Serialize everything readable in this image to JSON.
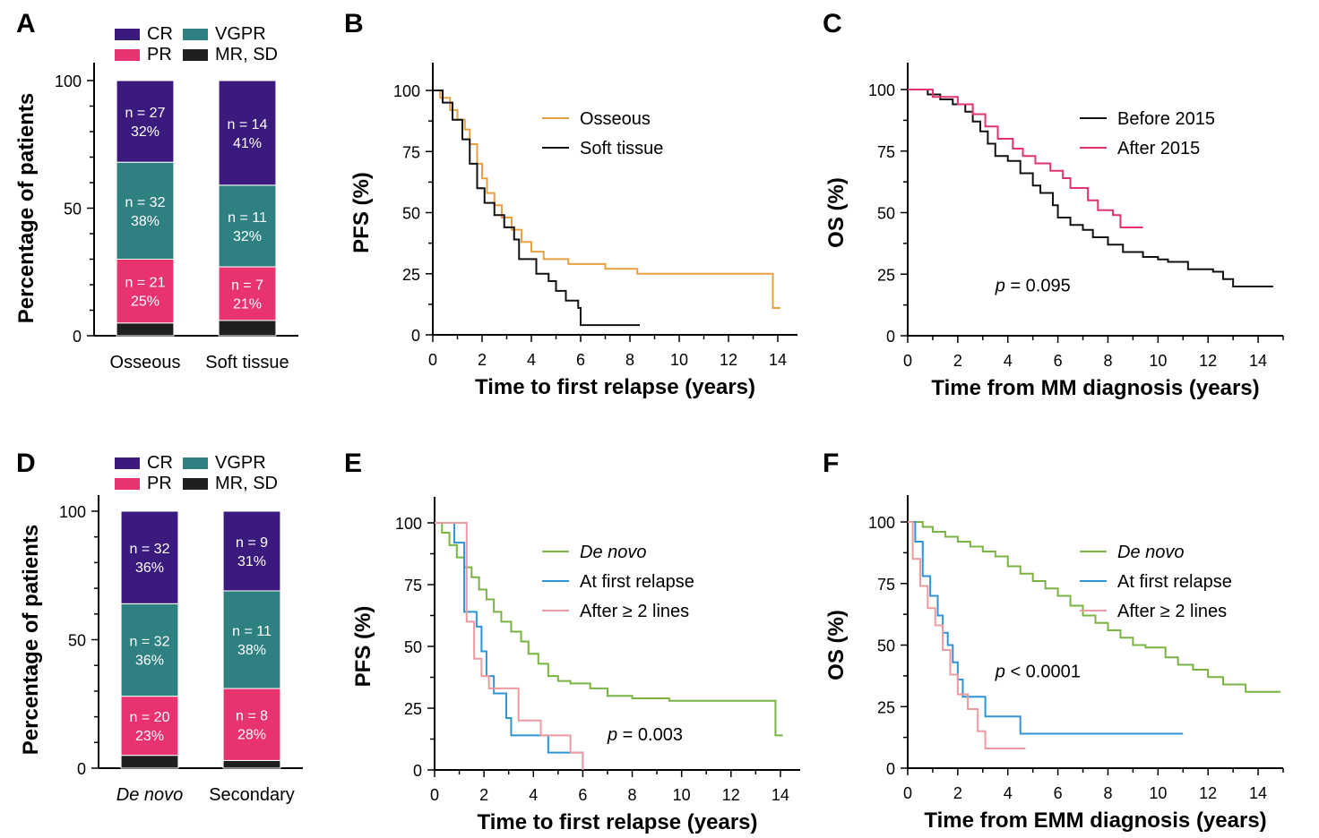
{
  "chart_data": [
    {
      "panel": "A",
      "type": "bar",
      "stacked": true,
      "categories": [
        "Osseous",
        "Soft tissue"
      ],
      "categories_italic": [
        false,
        false
      ],
      "ylabel": "Percentage of patients",
      "ylim": [
        0,
        100
      ],
      "yticks": [
        0,
        50,
        100
      ],
      "legend_placement": "top",
      "series": [
        {
          "name": "MR, SD",
          "color": "#1f1f1f",
          "values": [
            5,
            6
          ],
          "labels": [
            "",
            ""
          ]
        },
        {
          "name": "PR",
          "color": "#e8336e",
          "values": [
            25,
            21
          ],
          "labels": [
            "n = 21\n25%",
            "n = 7\n21%"
          ]
        },
        {
          "name": "VGPR",
          "color": "#2f8080",
          "values": [
            38,
            32
          ],
          "labels": [
            "n = 32\n38%",
            "n = 11\n32%"
          ]
        },
        {
          "name": "CR",
          "color": "#3a1a7c",
          "values": [
            32,
            41
          ],
          "labels": [
            "n = 27\n32%",
            "n = 14\n41%"
          ]
        }
      ]
    },
    {
      "panel": "B",
      "type": "line",
      "step": true,
      "xlabel": "Time to first relapse (years)",
      "ylabel": "PFS (%)",
      "xlim": [
        0,
        15
      ],
      "ylim": [
        0,
        100
      ],
      "xticks": [
        0,
        2,
        4,
        6,
        8,
        10,
        12,
        14
      ],
      "yticks": [
        0,
        25,
        50,
        75,
        100
      ],
      "series": [
        {
          "name": "Osseous",
          "color": "#e8a040",
          "points": [
            [
              0,
              100
            ],
            [
              0.3,
              97
            ],
            [
              0.7,
              92
            ],
            [
              1,
              88
            ],
            [
              1.3,
              84
            ],
            [
              1.5,
              78
            ],
            [
              1.8,
              70
            ],
            [
              2,
              64
            ],
            [
              2.2,
              58
            ],
            [
              2.5,
              53
            ],
            [
              2.8,
              48
            ],
            [
              3.2,
              43
            ],
            [
              3.6,
              38
            ],
            [
              4,
              34
            ],
            [
              4.5,
              31
            ],
            [
              5.5,
              29
            ],
            [
              7,
              27
            ],
            [
              8.3,
              25
            ],
            [
              13.8,
              24
            ],
            [
              13.8,
              11
            ],
            [
              14.1,
              11
            ]
          ]
        },
        {
          "name": "Soft tissue",
          "color": "#111111",
          "points": [
            [
              0,
              100
            ],
            [
              0.4,
              95
            ],
            [
              0.8,
              88
            ],
            [
              1.2,
              80
            ],
            [
              1.5,
              70
            ],
            [
              1.8,
              60
            ],
            [
              2.1,
              54
            ],
            [
              2.5,
              49
            ],
            [
              2.9,
              44
            ],
            [
              3.3,
              39
            ],
            [
              3.5,
              31
            ],
            [
              4.2,
              25
            ],
            [
              4.7,
              22
            ],
            [
              5,
              18
            ],
            [
              5.4,
              14
            ],
            [
              5.9,
              11
            ],
            [
              6,
              4
            ],
            [
              8.4,
              4
            ]
          ]
        }
      ]
    },
    {
      "panel": "C",
      "type": "line",
      "step": true,
      "xlabel": "Time from MM diagnosis (years)",
      "ylabel": "OS (%)",
      "xlim": [
        0,
        15
      ],
      "ylim": [
        0,
        100
      ],
      "xticks": [
        0,
        2,
        4,
        6,
        8,
        10,
        12,
        14
      ],
      "yticks": [
        0,
        25,
        50,
        75,
        100
      ],
      "annotation": {
        "italic": "p",
        "text": " = 0.095",
        "x": 3.5,
        "y": 18
      },
      "series": [
        {
          "name": "Before 2015",
          "color": "#111111",
          "points": [
            [
              0,
              100
            ],
            [
              0.8,
              98
            ],
            [
              1.3,
              96
            ],
            [
              1.8,
              94
            ],
            [
              2.3,
              91
            ],
            [
              2.6,
              87
            ],
            [
              2.9,
              83
            ],
            [
              3.2,
              78
            ],
            [
              3.5,
              73
            ],
            [
              4,
              71
            ],
            [
              4.5,
              66
            ],
            [
              5,
              61
            ],
            [
              5.3,
              58
            ],
            [
              5.8,
              53
            ],
            [
              6,
              48
            ],
            [
              6.5,
              45
            ],
            [
              7,
              43
            ],
            [
              7.4,
              40
            ],
            [
              8,
              37
            ],
            [
              8.6,
              34
            ],
            [
              9.4,
              32
            ],
            [
              10,
              31
            ],
            [
              10.4,
              30
            ],
            [
              11.2,
              27
            ],
            [
              12.2,
              26
            ],
            [
              12.6,
              23
            ],
            [
              13,
              20
            ],
            [
              14.6,
              20
            ]
          ]
        },
        {
          "name": "After 2015",
          "color": "#e0356a",
          "points": [
            [
              0,
              100
            ],
            [
              1,
              97
            ],
            [
              2,
              94
            ],
            [
              2.6,
              90
            ],
            [
              3.1,
              85
            ],
            [
              3.6,
              80
            ],
            [
              4.2,
              76
            ],
            [
              4.6,
              73
            ],
            [
              5.1,
              70
            ],
            [
              5.7,
              67
            ],
            [
              6.2,
              64
            ],
            [
              6.5,
              60
            ],
            [
              7.2,
              55
            ],
            [
              7.6,
              51
            ],
            [
              8.2,
              49
            ],
            [
              8.5,
              44
            ],
            [
              9.4,
              44
            ]
          ]
        }
      ]
    },
    {
      "panel": "D",
      "type": "bar",
      "stacked": true,
      "categories": [
        "De novo",
        "Secondary"
      ],
      "categories_italic": [
        true,
        false
      ],
      "ylabel": "Percentage of patients",
      "ylim": [
        0,
        100
      ],
      "yticks": [
        0,
        50,
        100
      ],
      "legend_placement": "top",
      "series": [
        {
          "name": "MR, SD",
          "color": "#1f1f1f",
          "values": [
            5,
            3
          ],
          "labels": [
            "",
            ""
          ]
        },
        {
          "name": "PR",
          "color": "#e8336e",
          "values": [
            23,
            28
          ],
          "labels": [
            "n = 20\n23%",
            "n = 8\n28%"
          ]
        },
        {
          "name": "VGPR",
          "color": "#2f8080",
          "values": [
            36,
            38
          ],
          "labels": [
            "n = 32\n36%",
            "n = 11\n38%"
          ]
        },
        {
          "name": "CR",
          "color": "#3a1a7c",
          "values": [
            36,
            31
          ],
          "labels": [
            "n = 32\n36%",
            "n = 9\n31%"
          ]
        }
      ]
    },
    {
      "panel": "E",
      "type": "line",
      "step": true,
      "xlabel": "Time to first relapse (years)",
      "ylabel": "PFS (%)",
      "xlim": [
        0,
        15
      ],
      "ylim": [
        0,
        100
      ],
      "xticks": [
        0,
        2,
        4,
        6,
        8,
        10,
        12,
        14
      ],
      "yticks": [
        0,
        25,
        50,
        75,
        100
      ],
      "annotation": {
        "italic": "p",
        "text": " = 0.003",
        "x": 7,
        "y": 12
      },
      "series": [
        {
          "name": "De novo",
          "italic": true,
          "color": "#79b443",
          "points": [
            [
              0,
              100
            ],
            [
              0.3,
              96
            ],
            [
              0.6,
              91
            ],
            [
              0.9,
              86
            ],
            [
              1.2,
              82
            ],
            [
              1.5,
              78
            ],
            [
              1.8,
              73
            ],
            [
              2.1,
              69
            ],
            [
              2.4,
              64
            ],
            [
              2.7,
              60
            ],
            [
              3.1,
              56
            ],
            [
              3.5,
              52
            ],
            [
              3.8,
              47
            ],
            [
              4.2,
              43
            ],
            [
              4.6,
              38
            ],
            [
              5,
              36
            ],
            [
              5.5,
              35
            ],
            [
              6.3,
              33
            ],
            [
              7,
              30
            ],
            [
              8,
              29
            ],
            [
              9.5,
              28
            ],
            [
              13.8,
              27
            ],
            [
              13.8,
              14
            ],
            [
              14.1,
              14
            ]
          ]
        },
        {
          "name": "At first relapse",
          "italic": false,
          "color": "#2f94d6",
          "points": [
            [
              0,
              100
            ],
            [
              0.8,
              92
            ],
            [
              1.2,
              64
            ],
            [
              1.7,
              58
            ],
            [
              1.9,
              48
            ],
            [
              2.1,
              38
            ],
            [
              2.4,
              31
            ],
            [
              2.9,
              21
            ],
            [
              3.1,
              14
            ],
            [
              4.6,
              7
            ],
            [
              6,
              7
            ],
            [
              6,
              0
            ]
          ]
        },
        {
          "name": "After ≥ 2 lines",
          "italic": false,
          "color": "#ee9aa0",
          "points": [
            [
              0,
              100
            ],
            [
              1,
              100
            ],
            [
              1.3,
              60
            ],
            [
              1.6,
              45
            ],
            [
              1.9,
              38
            ],
            [
              2.2,
              33
            ],
            [
              3.3,
              33
            ],
            [
              3.4,
              20
            ],
            [
              4.3,
              14
            ],
            [
              5.5,
              7
            ],
            [
              6,
              0
            ]
          ]
        }
      ]
    },
    {
      "panel": "F",
      "type": "line",
      "step": true,
      "xlabel": "Time from EMM diagnosis (years)",
      "ylabel": "OS (%)",
      "xlim": [
        0,
        15
      ],
      "ylim": [
        0,
        100
      ],
      "xticks": [
        0,
        2,
        4,
        6,
        8,
        10,
        12,
        14
      ],
      "yticks": [
        0,
        25,
        50,
        75,
        100
      ],
      "annotation": {
        "italic": "p",
        "text": " < 0.0001",
        "x": 3.5,
        "y": 37
      },
      "series": [
        {
          "name": "De novo",
          "italic": true,
          "color": "#79b443",
          "points": [
            [
              0,
              100
            ],
            [
              0.6,
              98
            ],
            [
              1,
              96
            ],
            [
              1.5,
              94
            ],
            [
              2,
              92
            ],
            [
              2.5,
              90
            ],
            [
              3,
              88
            ],
            [
              3.5,
              86
            ],
            [
              4,
              82
            ],
            [
              4.5,
              79
            ],
            [
              5,
              76
            ],
            [
              5.5,
              73
            ],
            [
              6,
              70
            ],
            [
              6.5,
              66
            ],
            [
              7,
              62
            ],
            [
              7.5,
              59
            ],
            [
              8,
              56
            ],
            [
              8.5,
              53
            ],
            [
              9,
              50
            ],
            [
              9.5,
              49
            ],
            [
              10.3,
              45
            ],
            [
              10.8,
              42
            ],
            [
              11.4,
              40
            ],
            [
              12,
              37
            ],
            [
              12.6,
              34
            ],
            [
              13.5,
              31
            ],
            [
              14.9,
              31
            ]
          ]
        },
        {
          "name": "At first relapse",
          "italic": false,
          "color": "#2f94d6",
          "points": [
            [
              0,
              100
            ],
            [
              0.3,
              92
            ],
            [
              0.6,
              78
            ],
            [
              0.9,
              70
            ],
            [
              1.2,
              62
            ],
            [
              1.4,
              55
            ],
            [
              1.6,
              50
            ],
            [
              1.8,
              43
            ],
            [
              2,
              36
            ],
            [
              2.2,
              29
            ],
            [
              3.1,
              21
            ],
            [
              4.5,
              14
            ],
            [
              11,
              14
            ]
          ]
        },
        {
          "name": "After ≥ 2 lines",
          "italic": false,
          "color": "#ee9aa0",
          "points": [
            [
              0,
              100
            ],
            [
              0.2,
              85
            ],
            [
              0.5,
              74
            ],
            [
              0.8,
              65
            ],
            [
              1.1,
              58
            ],
            [
              1.4,
              48
            ],
            [
              1.7,
              38
            ],
            [
              2,
              30
            ],
            [
              2.4,
              24
            ],
            [
              2.8,
              15
            ],
            [
              3.1,
              8
            ],
            [
              4.7,
              8
            ]
          ]
        }
      ]
    }
  ]
}
